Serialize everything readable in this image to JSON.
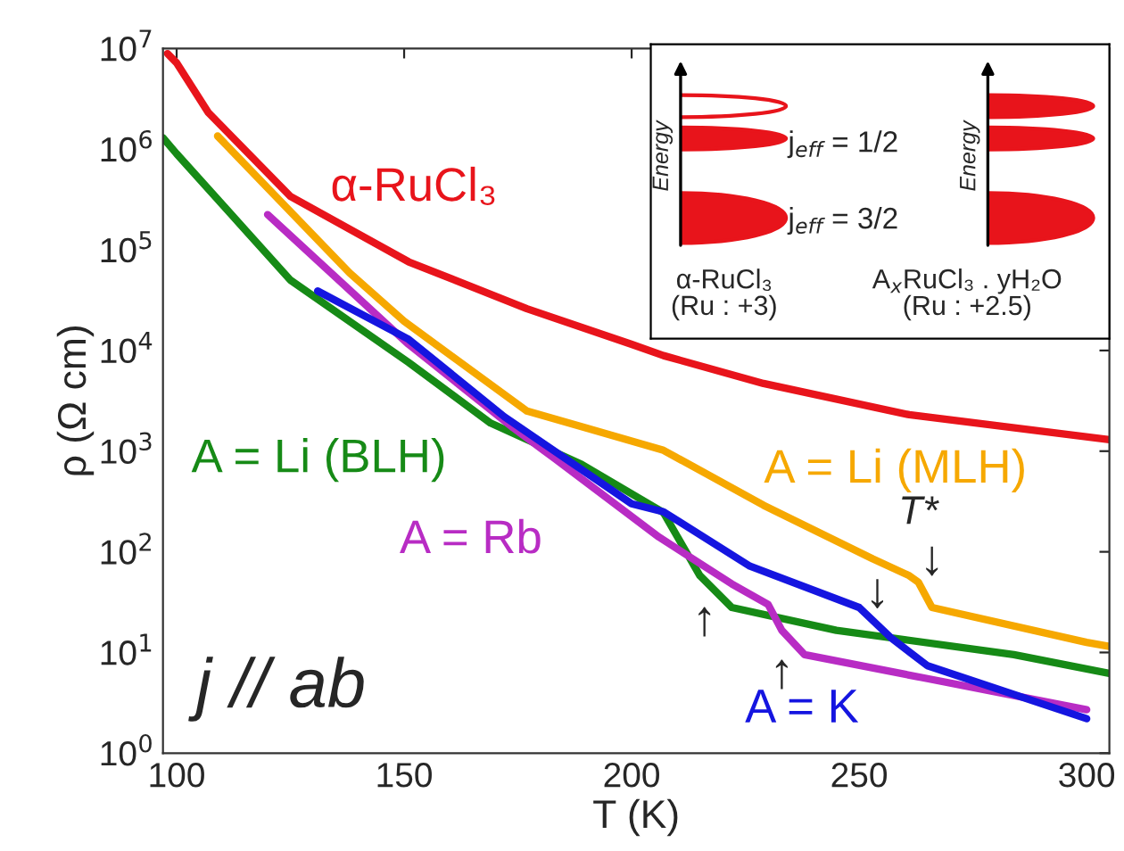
{
  "chart_data": {
    "type": "line",
    "xlabel": "T (K)",
    "ylabel": "ρ (Ω cm)",
    "log": "y",
    "grid": false,
    "line_style": "solid",
    "marker": "none",
    "xlim": [
      97,
      305
    ],
    "xticks": [
      100,
      150,
      200,
      250,
      300
    ],
    "ylim": [
      1,
      10000000
    ],
    "yticks": [
      {
        "value": 1,
        "label": "10$^{0}$"
      },
      {
        "value": 10,
        "label": "10$^{1}$"
      },
      {
        "value": 100,
        "label": "10$^{2}$"
      },
      {
        "value": 1000,
        "label": "10$^{3}$"
      },
      {
        "value": 10000,
        "label": "10$^{4}$"
      },
      {
        "value": 100000,
        "label": "10$^{5}$"
      },
      {
        "value": 1000000,
        "label": "10$^{6}$"
      },
      {
        "value": 10000000,
        "label": "10$^{7}$"
      }
    ],
    "series": [
      {
        "name": "α-RuCl₃",
        "color": "#e8141b",
        "x": [
          98,
          100,
          107,
          125,
          151,
          177,
          200,
          207,
          229,
          261,
          305
        ],
        "values": [
          8900000,
          7200000,
          2300000,
          340000,
          76000,
          26000,
          11500,
          8900,
          4700,
          2300,
          1300
        ]
      },
      {
        "name": "A = Li (MLH)",
        "color": "#f6a800",
        "x": [
          109,
          138,
          150,
          177,
          190,
          207,
          229,
          253,
          261,
          263,
          266,
          300,
          305
        ],
        "values": [
          1350000,
          59000,
          19500,
          2500,
          1700,
          1020,
          290,
          85,
          58,
          50,
          28,
          12.6,
          11.5
        ]
      },
      {
        "name": "A = Li (BLH)",
        "color": "#168a16",
        "x": [
          97,
          100,
          125,
          151,
          169,
          189,
          207,
          215,
          222,
          245,
          284,
          305
        ],
        "values": [
          1300000,
          900000,
          50000,
          7600,
          1900,
          740,
          245,
          58,
          28,
          16.6,
          9.5,
          6.2
        ]
      },
      {
        "name": "A = Rb",
        "color": "#b82cc4",
        "x": [
          120,
          151,
          174,
          183,
          206,
          222,
          230,
          233,
          238,
          265,
          300
        ],
        "values": [
          224000,
          11500,
          1700,
          850,
          140,
          48,
          30,
          16.6,
          9.5,
          5.5,
          2.7
        ]
      },
      {
        "name": "A = K",
        "color": "#1515e0",
        "x": [
          131,
          151,
          172,
          200,
          207,
          226,
          250,
          257,
          265,
          300
        ],
        "values": [
          39000,
          12900,
          2200,
          300,
          250,
          72,
          28,
          14,
          7.4,
          2.2
        ]
      }
    ],
    "annotations": [
      "↑",
      "↑",
      "↓",
      "T*",
      "↓",
      "j // ab",
      "Energy",
      "Energy",
      "j$_{eff}$ = 1/2",
      "j$_{eff}$ = 3/2",
      "α-RuCl₃\n(Ru : +3)",
      "A$_{x}$RuCl₃ . yH₂O\n(Ru : +2.5)"
    ]
  }
}
